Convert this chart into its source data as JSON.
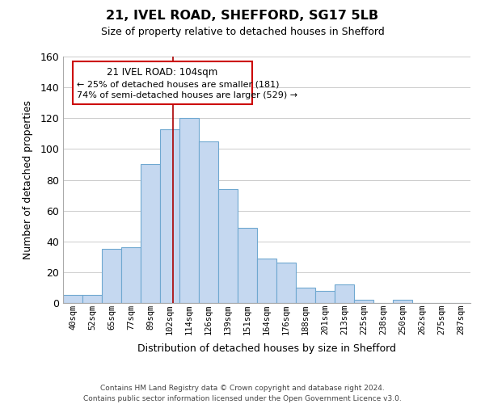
{
  "title": "21, IVEL ROAD, SHEFFORD, SG17 5LB",
  "subtitle": "Size of property relative to detached houses in Shefford",
  "xlabel": "Distribution of detached houses by size in Shefford",
  "ylabel": "Number of detached properties",
  "bin_labels": [
    "40sqm",
    "52sqm",
    "65sqm",
    "77sqm",
    "89sqm",
    "102sqm",
    "114sqm",
    "126sqm",
    "139sqm",
    "151sqm",
    "164sqm",
    "176sqm",
    "188sqm",
    "201sqm",
    "213sqm",
    "225sqm",
    "238sqm",
    "250sqm",
    "262sqm",
    "275sqm",
    "287sqm"
  ],
  "bar_values": [
    5,
    5,
    35,
    36,
    90,
    113,
    120,
    105,
    74,
    49,
    29,
    26,
    10,
    8,
    12,
    2,
    0,
    2,
    0,
    0,
    0
  ],
  "bar_color": "#c5d8f0",
  "bar_edge_color": "#6fa8d0",
  "vline_x_index": 5,
  "vline_color": "#aa0000",
  "annotation_text1": "21 IVEL ROAD: 104sqm",
  "annotation_text2": "← 25% of detached houses are smaller (181)",
  "annotation_text3": "74% of semi-detached houses are larger (529) →",
  "annotation_box_color": "#ffffff",
  "annotation_box_edge": "#cc0000",
  "ylim": [
    0,
    160
  ],
  "yticks": [
    0,
    20,
    40,
    60,
    80,
    100,
    120,
    140,
    160
  ],
  "footer_line1": "Contains HM Land Registry data © Crown copyright and database right 2024.",
  "footer_line2": "Contains public sector information licensed under the Open Government Licence v3.0.",
  "background_color": "#ffffff",
  "grid_color": "#cccccc",
  "spine_color": "#aaaaaa"
}
